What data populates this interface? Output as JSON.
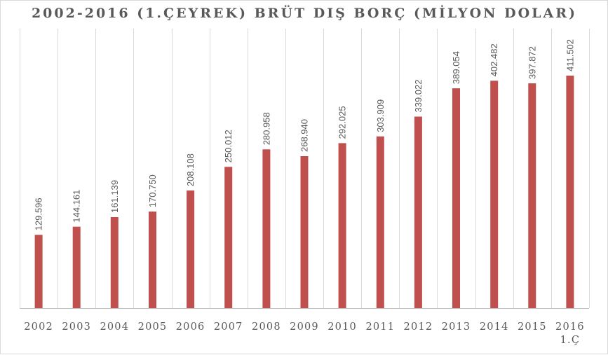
{
  "chart_data": {
    "type": "bar",
    "title": "2002-2016 (1.ÇEYREK) BRÜT DIŞ BORÇ (MİLYON DOLAR)",
    "xlabel": "",
    "ylabel": "",
    "categories": [
      "2002",
      "2003",
      "2004",
      "2005",
      "2006",
      "2007",
      "2008",
      "2009",
      "2010",
      "2011",
      "2012",
      "2013",
      "2014",
      "2015",
      "2016 1.Ç"
    ],
    "category_lines": [
      [
        "2002"
      ],
      [
        "2003"
      ],
      [
        "2004"
      ],
      [
        "2005"
      ],
      [
        "2006"
      ],
      [
        "2007"
      ],
      [
        "2008"
      ],
      [
        "2009"
      ],
      [
        "2010"
      ],
      [
        "2011"
      ],
      [
        "2012"
      ],
      [
        "2013"
      ],
      [
        "2014"
      ],
      [
        "2015"
      ],
      [
        "2016",
        "1.Ç"
      ]
    ],
    "values": [
      129596,
      144161,
      161139,
      170750,
      208108,
      250012,
      280958,
      268940,
      292025,
      303909,
      339022,
      389054,
      402482,
      397872,
      411502
    ],
    "value_labels": [
      "129.596",
      "144.161",
      "161.139",
      "170.750",
      "208.108",
      "250.012",
      "280.958",
      "268.940",
      "292.025",
      "303.909",
      "339.022",
      "389.054",
      "402.482",
      "397.872",
      "411.502"
    ],
    "ylim": [
      0,
      411502
    ],
    "grid": "vertical",
    "legend": "none",
    "colors": {
      "bar": "#c0504d",
      "grid": "#d9d9d9",
      "text": "#595959",
      "axis": "#bfbfbf"
    }
  }
}
